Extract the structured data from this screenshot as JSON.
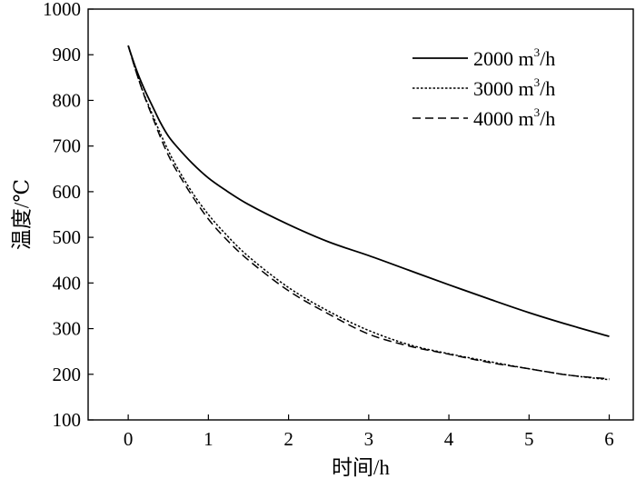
{
  "chart_data": {
    "type": "line",
    "title": "",
    "xlabel": "时间/h",
    "ylabel": "温度/℃",
    "xlim": [
      -0.5,
      6.3
    ],
    "ylim": [
      100,
      1000
    ],
    "xticks": [
      0,
      1,
      2,
      3,
      4,
      5,
      6
    ],
    "yticks": [
      100,
      200,
      300,
      400,
      500,
      600,
      700,
      800,
      900,
      1000
    ],
    "grid": false,
    "legend_position": "top-right",
    "series": [
      {
        "name": "2000 m³/h",
        "name_parts": {
          "base": "2000 m",
          "sup": "3",
          "tail": "/h"
        },
        "style": "solid",
        "x": [
          0,
          0.1,
          0.2,
          0.3,
          0.4,
          0.5,
          0.6,
          0.8,
          1.0,
          1.2,
          1.5,
          2.0,
          2.5,
          3.0,
          3.5,
          4.0,
          4.5,
          5.0,
          5.5,
          6.0
        ],
        "y": [
          920,
          868,
          825,
          788,
          752,
          722,
          700,
          662,
          630,
          605,
          572,
          528,
          490,
          460,
          428,
          396,
          365,
          335,
          308,
          283
        ]
      },
      {
        "name": "3000 m³/h",
        "name_parts": {
          "base": "3000 m",
          "sup": "3",
          "tail": "/h"
        },
        "style": "dotted",
        "x": [
          0,
          0.1,
          0.2,
          0.3,
          0.4,
          0.5,
          0.6,
          0.8,
          1.0,
          1.2,
          1.5,
          2.0,
          2.5,
          3.0,
          3.5,
          4.0,
          4.5,
          5.0,
          5.5,
          6.0
        ],
        "y": [
          920,
          862,
          812,
          770,
          728,
          690,
          656,
          598,
          550,
          510,
          458,
          390,
          338,
          296,
          265,
          245,
          228,
          212,
          198,
          188
        ]
      },
      {
        "name": "4000 m³/h",
        "name_parts": {
          "base": "4000 m",
          "sup": "3",
          "tail": "/h"
        },
        "style": "dashed",
        "x": [
          0,
          0.1,
          0.2,
          0.3,
          0.4,
          0.5,
          0.6,
          0.8,
          1.0,
          1.2,
          1.5,
          2.0,
          2.5,
          3.0,
          3.5,
          4.0,
          4.5,
          5.0,
          5.5,
          6.0
        ],
        "y": [
          920,
          862,
          810,
          765,
          720,
          680,
          647,
          590,
          540,
          500,
          450,
          383,
          332,
          288,
          262,
          244,
          226,
          212,
          198,
          190
        ]
      }
    ]
  }
}
